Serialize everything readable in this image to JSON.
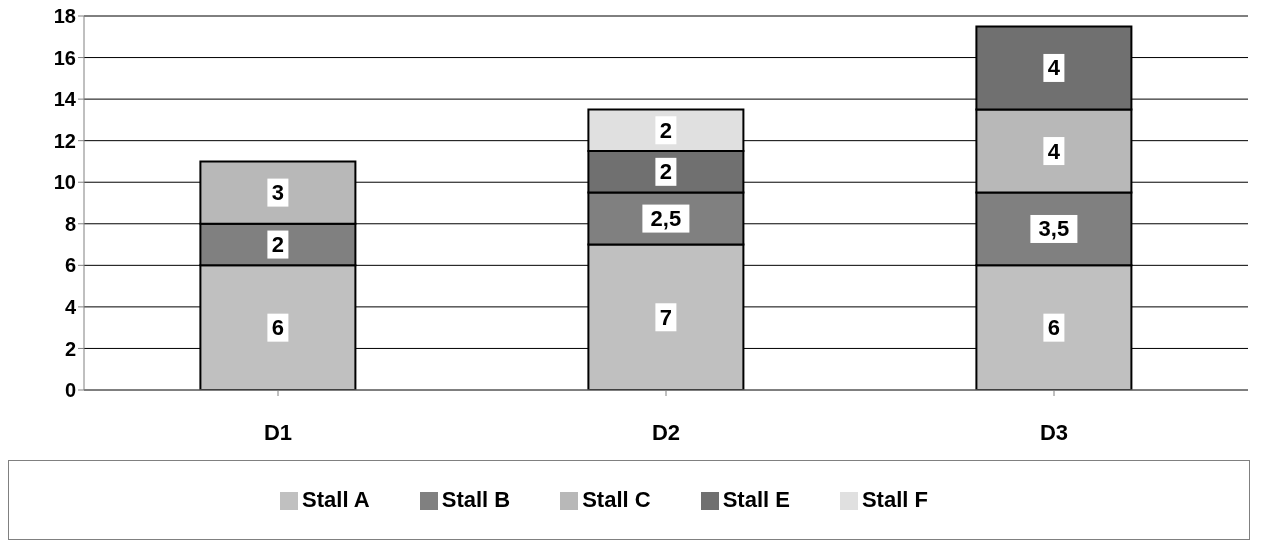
{
  "chart_data": {
    "type": "bar",
    "stacked": true,
    "categories": [
      "D1",
      "D2",
      "D3"
    ],
    "series": [
      {
        "name": "Stall A",
        "color": "#c0c0c0",
        "values": [
          6,
          7,
          6
        ],
        "value_labels": [
          "6",
          "7",
          "6"
        ]
      },
      {
        "name": "Stall B",
        "color": "#808080",
        "values": [
          2,
          2.5,
          3.5
        ],
        "value_labels": [
          "2",
          "2,5",
          "3,5"
        ]
      },
      {
        "name": "Stall C",
        "color": "#b8b8b8",
        "values": [
          3,
          null,
          4
        ],
        "value_labels": [
          "3",
          null,
          "4"
        ]
      },
      {
        "name": "Stall E",
        "color": "#707070",
        "values": [
          null,
          2,
          4
        ],
        "value_labels": [
          null,
          "2",
          "4"
        ]
      },
      {
        "name": "Stall F",
        "color": "#e0e0e0",
        "values": [
          null,
          2,
          null
        ],
        "value_labels": [
          null,
          "2",
          null
        ]
      }
    ],
    "ylim": [
      0,
      18
    ],
    "yticks": [
      0,
      2,
      4,
      6,
      8,
      10,
      12,
      14,
      16,
      18
    ],
    "grid": "y",
    "legend": "bottom"
  }
}
